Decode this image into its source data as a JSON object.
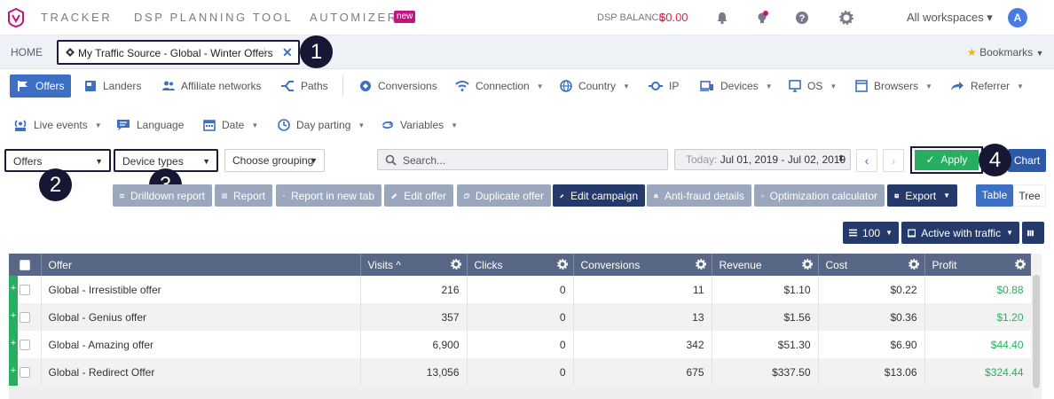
{
  "topnav": {
    "items": [
      "TRACKER",
      "DSP PLANNING TOOL",
      "AUTOMIZER"
    ],
    "badge": "new",
    "dsp_balance_label": "DSP BALANCE",
    "dsp_balance_value": "$0.00",
    "workspaces": "All workspaces ▾",
    "avatar": "A",
    "icons": [
      "bell-icon",
      "lightbulb-icon",
      "help-icon",
      "gear-icon"
    ]
  },
  "tabs": {
    "home": "HOME",
    "active": "My Traffic Source - Global - Winter Offers",
    "bookmarks": "Bookmarks"
  },
  "reports_row1": [
    {
      "label": "Offers",
      "icon": "flag-icon",
      "dropdown": false,
      "active": true
    },
    {
      "label": "Landers",
      "icon": "lander-icon",
      "dropdown": false
    },
    {
      "label": "Affiliate networks",
      "icon": "people-icon",
      "dropdown": false
    },
    {
      "label": "Paths",
      "icon": "paths-icon",
      "dropdown": false
    },
    {
      "label": "Conversions",
      "icon": "conversion-icon",
      "dropdown": false
    },
    {
      "label": "Connection",
      "icon": "wifi-icon",
      "dropdown": true
    },
    {
      "label": "Country",
      "icon": "globe-icon",
      "dropdown": true
    },
    {
      "label": "IP",
      "icon": "ip-icon",
      "dropdown": false
    },
    {
      "label": "Devices",
      "icon": "devices-icon",
      "dropdown": true
    },
    {
      "label": "OS",
      "icon": "monitor-icon",
      "dropdown": true
    },
    {
      "label": "Browsers",
      "icon": "browser-icon",
      "dropdown": true
    },
    {
      "label": "Referrer",
      "icon": "referrer-icon",
      "dropdown": true
    }
  ],
  "reports_row2": [
    {
      "label": "Live events",
      "icon": "live-icon",
      "dropdown": true
    },
    {
      "label": "Language",
      "icon": "language-icon",
      "dropdown": false
    },
    {
      "label": "Date",
      "icon": "calendar-icon",
      "dropdown": true
    },
    {
      "label": "Day parting",
      "icon": "clock-icon",
      "dropdown": true
    },
    {
      "label": "Variables",
      "icon": "variables-icon",
      "dropdown": true
    }
  ],
  "filters": {
    "grouping1": "Offers",
    "grouping2": "Device types",
    "grouping3": "Choose grouping",
    "search_placeholder": "Search...",
    "date_prefix": "Today:",
    "date_range": "Jul 01, 2019 - Jul 02, 2019",
    "apply": "Apply",
    "chart": "Chart"
  },
  "callouts": [
    "1",
    "2",
    "3",
    "4"
  ],
  "actions": [
    {
      "label": "Drilldown report",
      "icon": "list-icon"
    },
    {
      "label": "Report",
      "icon": "list-icon"
    },
    {
      "label": "Report in new tab",
      "icon": "list-icon"
    },
    {
      "label": "Edit offer",
      "icon": "pencil-icon"
    },
    {
      "label": "Duplicate offer",
      "icon": "copy-icon"
    },
    {
      "label": "Edit campaign",
      "icon": "pencil-icon"
    },
    {
      "label": "Anti-fraud details",
      "icon": "medkit-icon"
    },
    {
      "label": "Optimization calculator",
      "icon": "chart-area-icon"
    },
    {
      "label": "Export",
      "icon": "export-icon"
    }
  ],
  "view_toggle": {
    "table": "Table",
    "tree": "Tree"
  },
  "table_controls": {
    "page_size": "100",
    "filter": "Active with traffic"
  },
  "table": {
    "columns": [
      "Offer",
      "Visits ^",
      "Clicks",
      "Conversions",
      "Revenue",
      "Cost",
      "Profit"
    ],
    "rows": [
      [
        "Global - Irresistible offer",
        "216",
        "0",
        "11",
        "$1.10",
        "$0.22",
        "$0.88"
      ],
      [
        "Global - Genius offer",
        "357",
        "0",
        "13",
        "$1.56",
        "$0.36",
        "$1.20"
      ],
      [
        "Global - Amazing offer",
        "6,900",
        "0",
        "342",
        "$51.30",
        "$6.90",
        "$44.40"
      ],
      [
        "Global - Redirect Offer",
        "13,056",
        "0",
        "675",
        "$337.50",
        "$13.06",
        "$324.44"
      ]
    ]
  },
  "colors": {
    "brand": "#c3157f",
    "accent": "#3d6fc4",
    "dark_button": "#253a6b",
    "action_button": "#9aa7bd",
    "table_header": "#596787",
    "apply_green": "#27ae60",
    "profit_green": "#27ae60",
    "balance_red": "#e3224b"
  }
}
